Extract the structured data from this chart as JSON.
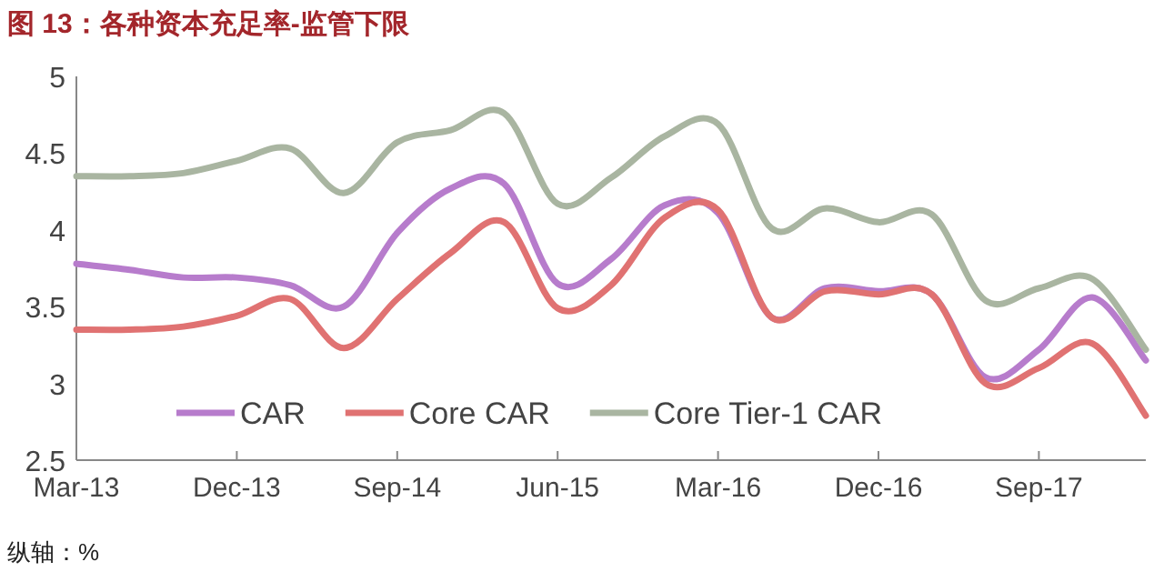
{
  "chart_data": {
    "type": "line",
    "title": "图 13：各种资本充足率-监管下限",
    "annotations": [
      "纵轴：%"
    ],
    "categories": [
      "Mar-13",
      null,
      null,
      "Dec-13",
      null,
      null,
      "Sep-14",
      null,
      null,
      "Jun-15",
      null,
      null,
      "Mar-16",
      null,
      null,
      "Dec-16",
      null,
      null,
      "Sep-17",
      null,
      null
    ],
    "ylim": [
      2.5,
      5
    ],
    "yticks": [
      2.5,
      3,
      3.5,
      4,
      4.5,
      5
    ],
    "grid": false,
    "legend": "bottom left",
    "marker": "none",
    "line_style": "solid",
    "series": [
      {
        "name": "CAR",
        "color": "#b77ccc",
        "values": [
          3.78,
          3.74,
          3.69,
          3.69,
          3.64,
          3.5,
          3.98,
          4.27,
          4.3,
          3.65,
          3.81,
          4.16,
          4.11,
          3.43,
          3.62,
          3.6,
          3.58,
          3.04,
          3.22,
          3.56,
          3.15
        ]
      },
      {
        "name": "Core CAR",
        "color": "#e07272",
        "values": [
          3.35,
          3.35,
          3.37,
          3.44,
          3.55,
          3.23,
          3.55,
          3.85,
          4.05,
          3.49,
          3.64,
          4.08,
          4.13,
          3.43,
          3.6,
          3.58,
          3.58,
          3,
          3.1,
          3.26,
          2.79
        ]
      },
      {
        "name": "Core Tier-1 CAR",
        "color": "#a9b5a1",
        "values": [
          4.35,
          4.35,
          4.37,
          4.45,
          4.53,
          4.24,
          4.57,
          4.65,
          4.76,
          4.17,
          4.34,
          4.61,
          4.69,
          4.01,
          4.14,
          4.05,
          4.1,
          3.54,
          3.62,
          3.68,
          3.22
        ]
      }
    ]
  }
}
